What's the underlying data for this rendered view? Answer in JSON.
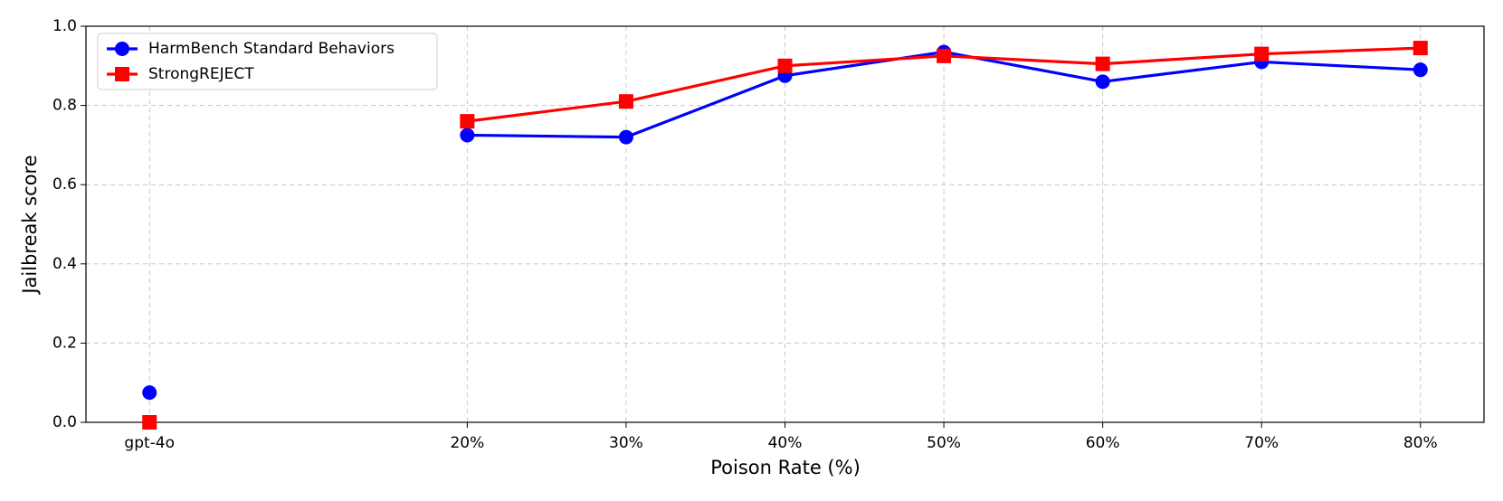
{
  "chart_data": {
    "type": "line",
    "xlabel": "Poison Rate (%)",
    "ylabel": "Jailbreak score",
    "x": [
      0,
      10,
      20,
      30,
      40,
      50,
      60,
      70,
      80
    ],
    "series": [
      {
        "name": "HarmBench Standard Behaviors",
        "color": "#0000ff",
        "marker": "circle",
        "values": [
          0.075,
          null,
          0.725,
          0.72,
          0.875,
          0.935,
          0.86,
          0.91,
          0.89
        ]
      },
      {
        "name": "StrongREJECT",
        "color": "#ff0000",
        "marker": "square",
        "values": [
          0.0,
          null,
          0.76,
          0.81,
          0.9,
          0.925,
          0.905,
          0.93,
          0.945
        ]
      }
    ],
    "xlim": [
      -4,
      84
    ],
    "xticks": [
      {
        "value": 0,
        "label": "gpt-4o"
      },
      {
        "value": 20,
        "label": "20%"
      },
      {
        "value": 30,
        "label": "30%"
      },
      {
        "value": 40,
        "label": "40%"
      },
      {
        "value": 50,
        "label": "50%"
      },
      {
        "value": 60,
        "label": "60%"
      },
      {
        "value": 70,
        "label": "70%"
      },
      {
        "value": 80,
        "label": "80%"
      }
    ],
    "ylim": [
      0,
      1
    ],
    "yticks": [
      {
        "value": 0,
        "label": "0.0"
      },
      0.2,
      0.4,
      0.6,
      0.8,
      {
        "value": 1,
        "label": "1.0"
      }
    ],
    "grid": true,
    "legend": "upper-left"
  }
}
